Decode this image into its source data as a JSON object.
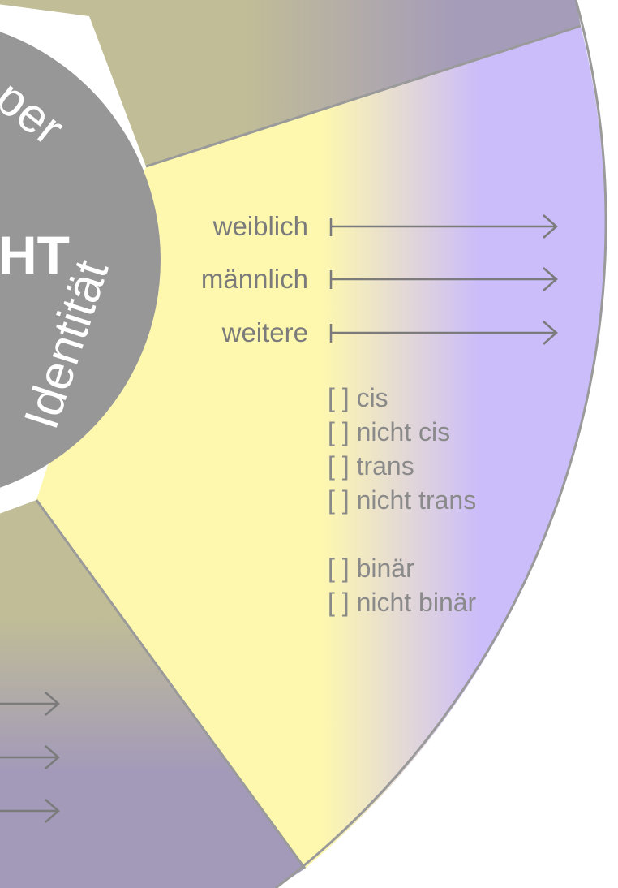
{
  "center": {
    "title_fragment": "HT",
    "arc_label_top": "per",
    "arc_label_right": "Identität"
  },
  "identity": {
    "genders": [
      {
        "label": "weiblich"
      },
      {
        "label": "männlich"
      },
      {
        "label": "weitere"
      }
    ],
    "checklist": [
      "[ ] cis",
      "[ ] nicht cis",
      "[ ] trans",
      "[ ] nicht trans",
      "",
      "[ ] binär",
      "[ ] nicht binär"
    ]
  },
  "colors": {
    "yellow": "#fef8ae",
    "lavender": "#cbbcfa",
    "olive": "#c0bd97",
    "mauve": "#a39ab9",
    "hub_gray": "#979797",
    "outline": "#9a9a9a",
    "text_gray": "#7b7b7b"
  }
}
